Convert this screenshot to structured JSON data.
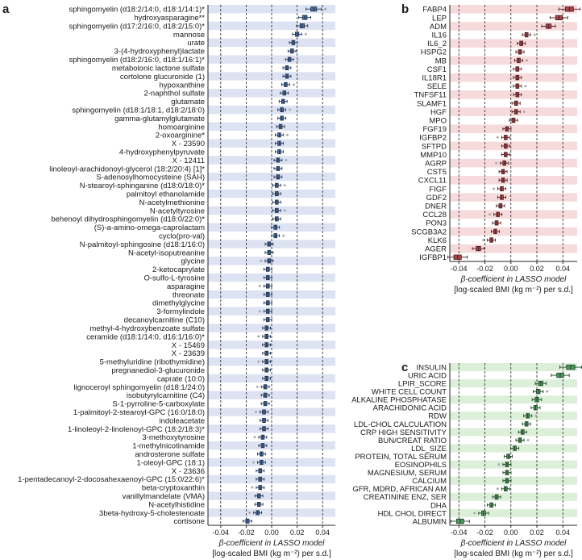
{
  "colors": {
    "a": {
      "band": "#dde3f2",
      "box": "#4a6fa5",
      "dark": "#1f2f48"
    },
    "b": {
      "band": "#f7dadb",
      "box": "#a8474b",
      "dark": "#4a1c1e"
    },
    "c": {
      "band": "#dcefd8",
      "box": "#4e9a5c",
      "dark": "#1d3f24"
    }
  },
  "chart_data": [
    {
      "type": "box",
      "panel_label": "a",
      "xlabel_line1": "β-coefficient in LASSO model",
      "xlabel_line2": "[log-scaled BMI (kg m⁻²) per s.d.]",
      "xlim": [
        -0.05,
        0.05
      ],
      "xticks": [
        -0.04,
        -0.02,
        0.0,
        0.02,
        0.04
      ],
      "xtick_labels": [
        "-0.04",
        "-0.02",
        "0.00",
        "0.02",
        "0.04"
      ],
      "categories": [
        "sphingomyelin (d18:2/14:0, d18:1/14:1)*",
        "hydroxyasparagine**",
        "sphingomyelin (d17:2/16:0, d18:2/15:0)*",
        "mannose",
        "urate",
        "3-(4-hydroxyphenyl)lactate",
        "sphingomyelin (d18:2/16:0, d18:1/16:1)*",
        "metabolonic lactone sulfate",
        "cortolone glucuronide (1)",
        "hypoxanthine",
        "2-naphthol sulfate",
        "glutamate",
        "sphingomyelin (d18:1/18:1, d18:2/18:0)",
        "gamma-glutamylglutamate",
        "homoarginine",
        "2-oxoarginine*",
        "X - 23590",
        "4-hydroxyphenylpyruvate",
        "X - 12411",
        "linoleoyl-arachidonoyl-glycerol (18:2/20:4) [1]*",
        "S-adenosylhomocysteine (SAH)",
        "N-stearoyl-sphinganine (d18:0/18:0)*",
        "palmitoyl ethanolamide",
        "N-acetylmethionine",
        "N-acetyltyrosine",
        "behenoyl dihydrosphingomyelin (d18:0/22:0)*",
        "(S)-a-amino-omega-caprolactam",
        "cyclo(pro-val)",
        "N-palmitoyl-sphingosine (d18:1/16:0)",
        "N-acetyl-isoputreanine",
        "glycine",
        "2-ketocaprylate",
        "O-sulfo-L-tyrosine",
        "asparagine",
        "threonate",
        "dimethylglycine",
        "3-formylindole",
        "decanoylcarnitine (C10)",
        "methyl-4-hydroxybenzoate sulfate",
        "ceramide (d18:1/14:0, d16:1/16:0)*",
        "X - 15469",
        "X - 23639",
        "5-methyluridine (ribothymidine)",
        "pregnanediol-3-glucuronide",
        "caprate (10:0)",
        "lignoceroyl sphingomyelin (d18:1/24:0)",
        "isobutyrylcarnitine (C4)",
        "S-1-pyrroline-5-carboxylate",
        "1-palmitoyl-2-stearoyl-GPC (16:0/18:0)",
        "indoleacetate",
        "1-linoleoyl-2-linolenoyl-GPC (18:2/18:3)*",
        "3-methoxytyrosine",
        "1-methylnicotinamide",
        "androsterone sulfate",
        "1-oleoyl-GPC (18:1)",
        "X - 23636",
        "1-pentadecanoyl-2-docosahexaenoyl-GPC (15:0/22:6)*",
        "beta-cryptoxanthin",
        "vanillylmandelate (VMA)",
        "N-acetylhistidine",
        "3beta-hydroxy-5-cholestenoate",
        "cortisone"
      ],
      "values": [
        0.033,
        0.026,
        0.024,
        0.02,
        0.017,
        0.016,
        0.014,
        0.012,
        0.012,
        0.011,
        0.01,
        0.009,
        0.008,
        0.008,
        0.007,
        0.006,
        0.006,
        0.006,
        0.005,
        0.005,
        0.005,
        0.004,
        0.004,
        0.004,
        0.004,
        0.004,
        0.003,
        0.003,
        -0.002,
        -0.002,
        -0.002,
        -0.003,
        -0.003,
        -0.003,
        -0.003,
        -0.003,
        -0.003,
        -0.003,
        -0.004,
        -0.004,
        -0.004,
        -0.004,
        -0.004,
        -0.004,
        -0.004,
        -0.005,
        -0.005,
        -0.005,
        -0.006,
        -0.006,
        -0.006,
        -0.007,
        -0.007,
        -0.008,
        -0.008,
        -0.009,
        -0.009,
        -0.009,
        -0.01,
        -0.01,
        -0.011,
        -0.019
      ]
    },
    {
      "type": "box",
      "panel_label": "b",
      "xlabel_line1": "β-coefficient in LASSO model",
      "xlabel_line2": "[log-scaled BMI (kg m⁻²) per s.d.]",
      "xlim": [
        -0.047,
        0.051
      ],
      "xticks": [
        -0.04,
        -0.02,
        0.0,
        0.02,
        0.04
      ],
      "xtick_labels": [
        "-0.04",
        "-0.02",
        "0.00",
        "0.02",
        "0.04"
      ],
      "categories": [
        "FABP4",
        "LEP",
        "ADM",
        "IL16",
        "IL6_2",
        "HSPG2",
        "MB",
        "CSF1",
        "IL18R1",
        "SELE",
        "TNFSF11",
        "SLAMF1",
        "HGF",
        "MPO",
        "FGF19",
        "IGFBP2",
        "SFTPD",
        "MMP10",
        "AGRP",
        "CST5",
        "CXCL11",
        "FIGF",
        "GDF2",
        "DNER",
        "CCL28",
        "PON3",
        "SCGB3A2",
        "KLK6",
        "AGER",
        "IGFBP1"
      ],
      "values": [
        0.045,
        0.037,
        0.029,
        0.012,
        0.008,
        0.007,
        0.006,
        0.005,
        0.005,
        0.005,
        0.005,
        0.004,
        0.004,
        0.002,
        -0.003,
        -0.004,
        -0.004,
        -0.004,
        -0.005,
        -0.006,
        -0.006,
        -0.007,
        -0.007,
        -0.008,
        -0.01,
        -0.011,
        -0.012,
        -0.015,
        -0.025,
        -0.041
      ]
    },
    {
      "type": "box",
      "panel_label": "c",
      "xlabel_line1": "β-coefficient in LASSO model",
      "xlabel_line2": "[log-scaled BMI (kg m⁻²) per s.d.]",
      "xlim": [
        -0.047,
        0.051
      ],
      "xticks": [
        -0.04,
        -0.02,
        0.0,
        0.02,
        0.04
      ],
      "xtick_labels": [
        "-0.04",
        "-0.02",
        "0.00",
        "0.02",
        "0.04"
      ],
      "categories": [
        "INSULIN",
        "URIC ACID",
        "LPIR_SCORE",
        "WHITE CELL COUNT",
        "ALKALINE PHOSPHATASE",
        "ARACHIDONIC ACID",
        "RDW",
        "LDL-CHOL CALCULATION",
        "CRP HIGH SENSITIVITY",
        "BUN/CREAT RATIO",
        "LDL_SIZE",
        "PROTEIN, TOTAL SERUM",
        "EOSINOPHILS",
        "MAGNESIUM, SERUM",
        "CALCIUM",
        "GFR, MDRD, AFRICAN AM",
        "CREATININE ENZ, SER",
        "DHA",
        "HDL CHOL DIRECT",
        "ALBUMIN"
      ],
      "values": [
        0.046,
        0.038,
        0.023,
        0.021,
        0.02,
        0.019,
        0.013,
        0.012,
        0.009,
        0.007,
        0.003,
        -0.002,
        -0.003,
        -0.003,
        -0.003,
        -0.004,
        -0.011,
        -0.015,
        -0.021,
        -0.039
      ]
    }
  ]
}
